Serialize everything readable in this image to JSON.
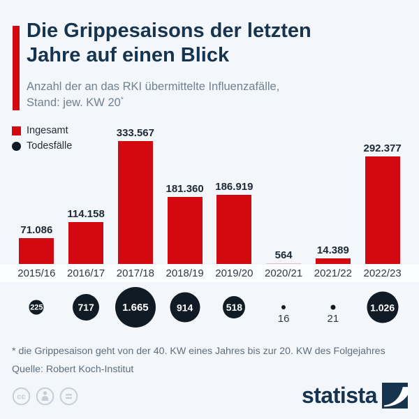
{
  "header": {
    "title_line1": "Die Grippesaisons der letzten",
    "title_line2": "Jahre auf einen Blick",
    "subtitle_line1": "Anzahl der an das RKI übermittelte Influenzafälle,",
    "subtitle_line2": "Stand: jew. KW 20",
    "footnote_marker": "*"
  },
  "legend": {
    "total_label": "Ingesamt",
    "deaths_label": "Todesfälle"
  },
  "chart_data": {
    "type": "bar",
    "title": "Die Grippesaisons der letzten Jahre auf einen Blick",
    "subtitle": "Anzahl der an das RKI übermittelte Influenzafälle, Stand: jew. KW 20*",
    "xlabel": "",
    "ylabel": "",
    "ylim": [
      0,
      333567
    ],
    "grid": false,
    "legend_position": "top-left",
    "categories": [
      "2015/16",
      "2016/17",
      "2017/18",
      "2018/19",
      "2019/20",
      "2020/21",
      "2021/22",
      "2022/23"
    ],
    "series": [
      {
        "name": "Ingesamt",
        "values": [
          71086,
          114158,
          333567,
          181360,
          186919,
          564,
          14389,
          292377
        ]
      },
      {
        "name": "Todesfälle",
        "values": [
          225,
          717,
          1665,
          914,
          518,
          16,
          21,
          1026
        ]
      }
    ],
    "columns": [
      {
        "season": "2015/16",
        "cases": 71086,
        "cases_label": "71.086",
        "deaths": 225,
        "deaths_label": "225"
      },
      {
        "season": "2016/17",
        "cases": 114158,
        "cases_label": "114.158",
        "deaths": 717,
        "deaths_label": "717"
      },
      {
        "season": "2017/18",
        "cases": 333567,
        "cases_label": "333.567",
        "deaths": 1665,
        "deaths_label": "1.665"
      },
      {
        "season": "2018/19",
        "cases": 181360,
        "cases_label": "181.360",
        "deaths": 914,
        "deaths_label": "914"
      },
      {
        "season": "2019/20",
        "cases": 186919,
        "cases_label": "186.919",
        "deaths": 518,
        "deaths_label": "518"
      },
      {
        "season": "2020/21",
        "cases": 564,
        "cases_label": "564",
        "deaths": 16,
        "deaths_label": "16"
      },
      {
        "season": "2021/22",
        "cases": 14389,
        "cases_label": "14.389",
        "deaths": 21,
        "deaths_label": "21"
      },
      {
        "season": "2022/23",
        "cases": 292377,
        "cases_label": "292.377",
        "deaths": 1026,
        "deaths_label": "1.026"
      }
    ]
  },
  "footer": {
    "footnote": "* die Grippesaison geht von der 40. KW eines Jahres bis zur 20. KW des Folgejahres",
    "source": "Quelle: Robert Koch-Institut"
  },
  "branding": {
    "logo_text": "statista",
    "cc_icons": [
      "cc",
      "person",
      "equals"
    ]
  },
  "colors": {
    "background": "#f3f6fa",
    "bar_red": "#d20a10",
    "bar_red_pale": "#e9bcb8",
    "deaths_black": "#111b26",
    "title_navy": "#17344f",
    "subtitle_gray": "#71818f",
    "footer_gray": "#5e6e7d",
    "cc_gray": "#c6ced7",
    "band_white": "#fbfdfe"
  }
}
